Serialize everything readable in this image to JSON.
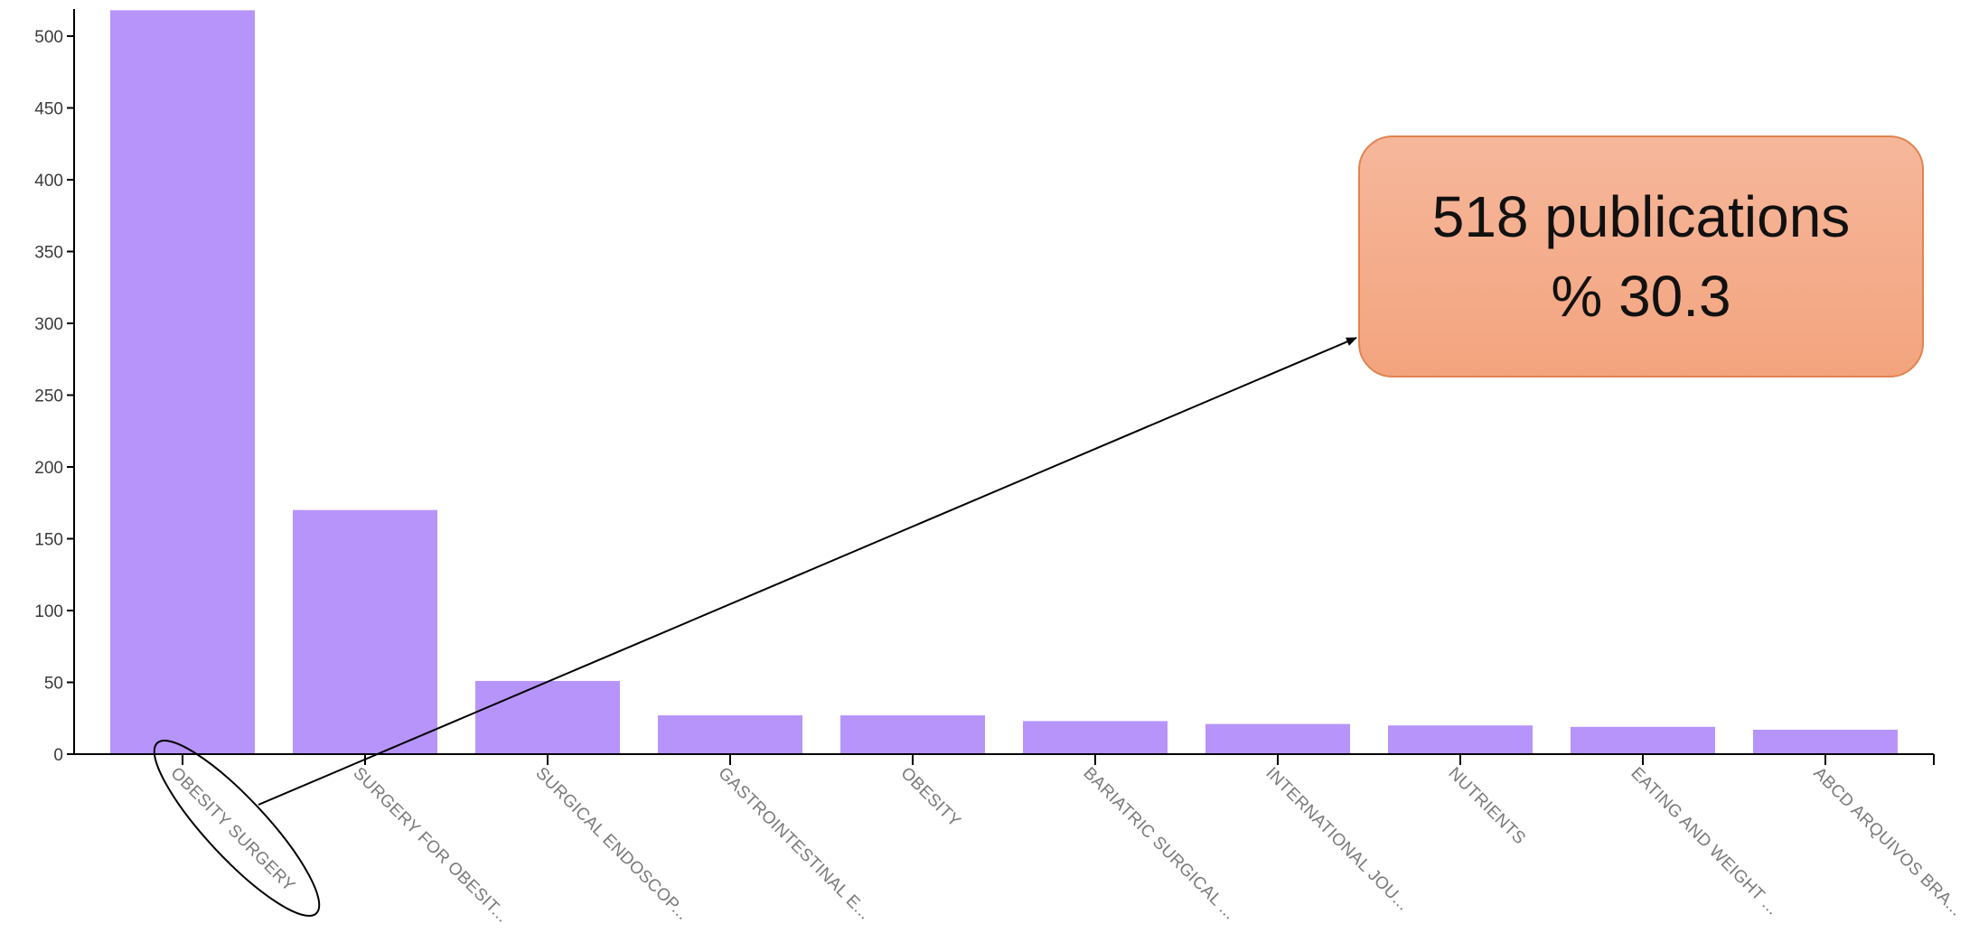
{
  "chart_data": {
    "type": "bar",
    "categories": [
      "OBESITY SURGERY",
      "SURGERY FOR OBESIT...",
      "SURGICAL ENDOSCOP...",
      "GASTROINTESTINAL E...",
      "OBESITY",
      "BARIATRIC SURGICAL ...",
      "INTERNATIONAL JOU...",
      "NUTRIENTS",
      "EATING AND WEIGHT ...",
      "ABCD ARQUIVOS BRA..."
    ],
    "values": [
      518,
      170,
      51,
      27,
      27,
      23,
      21,
      20,
      19,
      17
    ],
    "yticks": [
      "0",
      "50",
      "100",
      "150",
      "200",
      "250",
      "300",
      "350",
      "400",
      "450",
      "500"
    ],
    "ylim": [
      0,
      518
    ],
    "title": "",
    "xlabel": "",
    "ylabel": "",
    "grid": false,
    "bar_color": "#b794fa"
  },
  "callout": {
    "line1": "518 publications",
    "line2": "% 30.3",
    "fill_color": "#f4ad8a",
    "border_color": "#e2834f"
  }
}
